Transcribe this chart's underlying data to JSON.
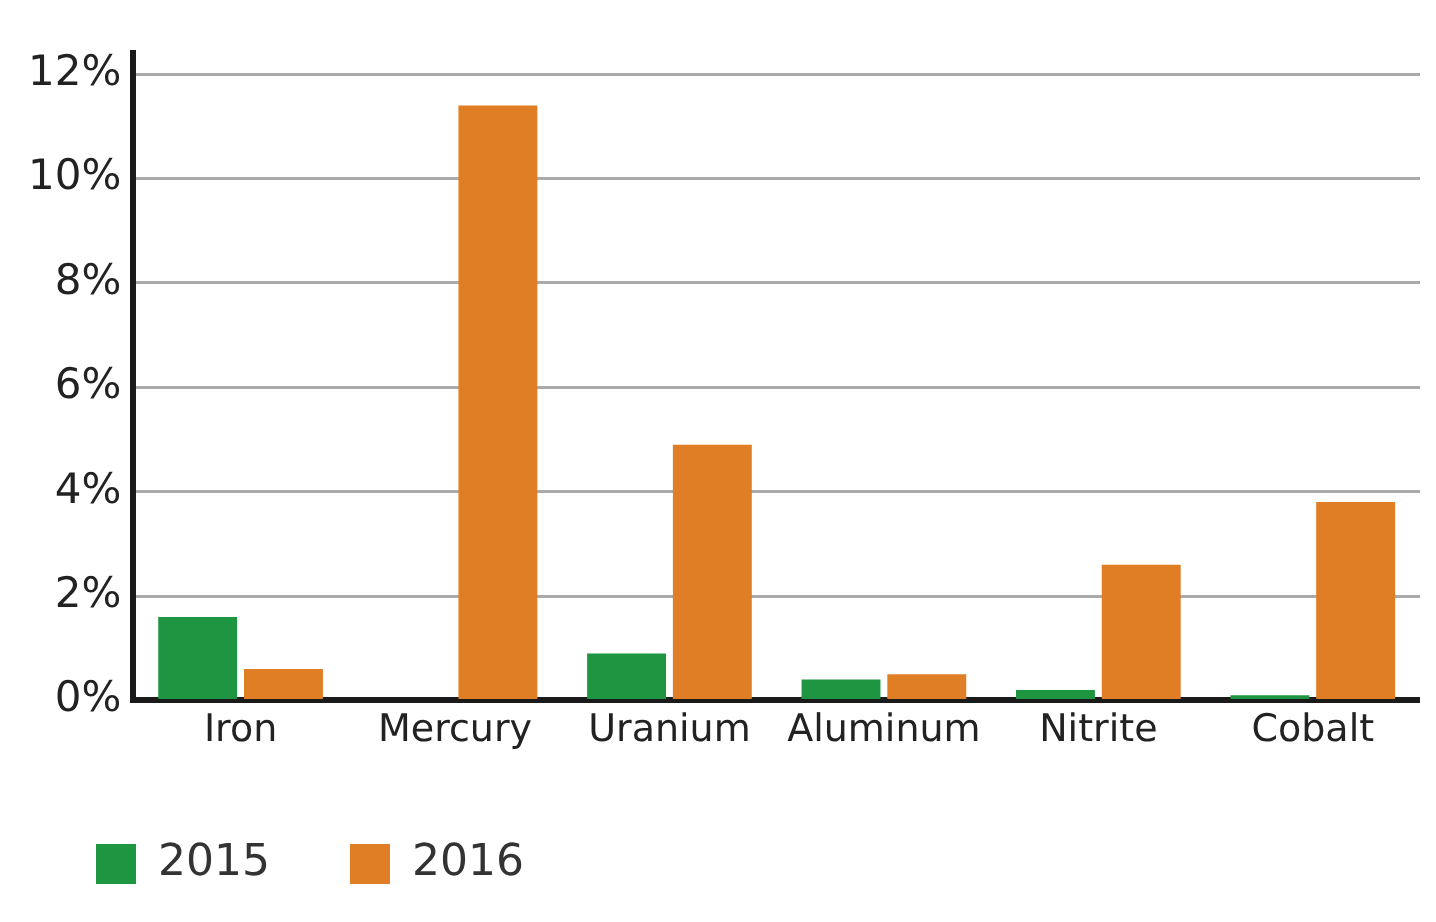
{
  "chart_data": {
    "type": "bar",
    "categories": [
      "Iron",
      "Mercury",
      "Uranium",
      "Aluminum",
      "Nitrite",
      "Cobalt"
    ],
    "series": [
      {
        "name": "2015",
        "color": "#1e9641",
        "values": [
          1.6,
          0,
          0.9,
          0.4,
          0.2,
          0.1
        ]
      },
      {
        "name": "2016",
        "color": "#e07e26",
        "values": [
          0.6,
          11.4,
          4.9,
          0.5,
          2.6,
          3.8
        ]
      }
    ],
    "ylim": [
      0,
      12.4
    ],
    "yticks": [
      {
        "value": 0,
        "label": "0%"
      },
      {
        "value": 2,
        "label": "2%"
      },
      {
        "value": 4,
        "label": "4%"
      },
      {
        "value": 6,
        "label": "6%"
      },
      {
        "value": 8,
        "label": "8%"
      },
      {
        "value": 10,
        "label": "10%"
      },
      {
        "value": 12,
        "label": "12%"
      }
    ],
    "grid": "y",
    "legend": "bottom left"
  }
}
